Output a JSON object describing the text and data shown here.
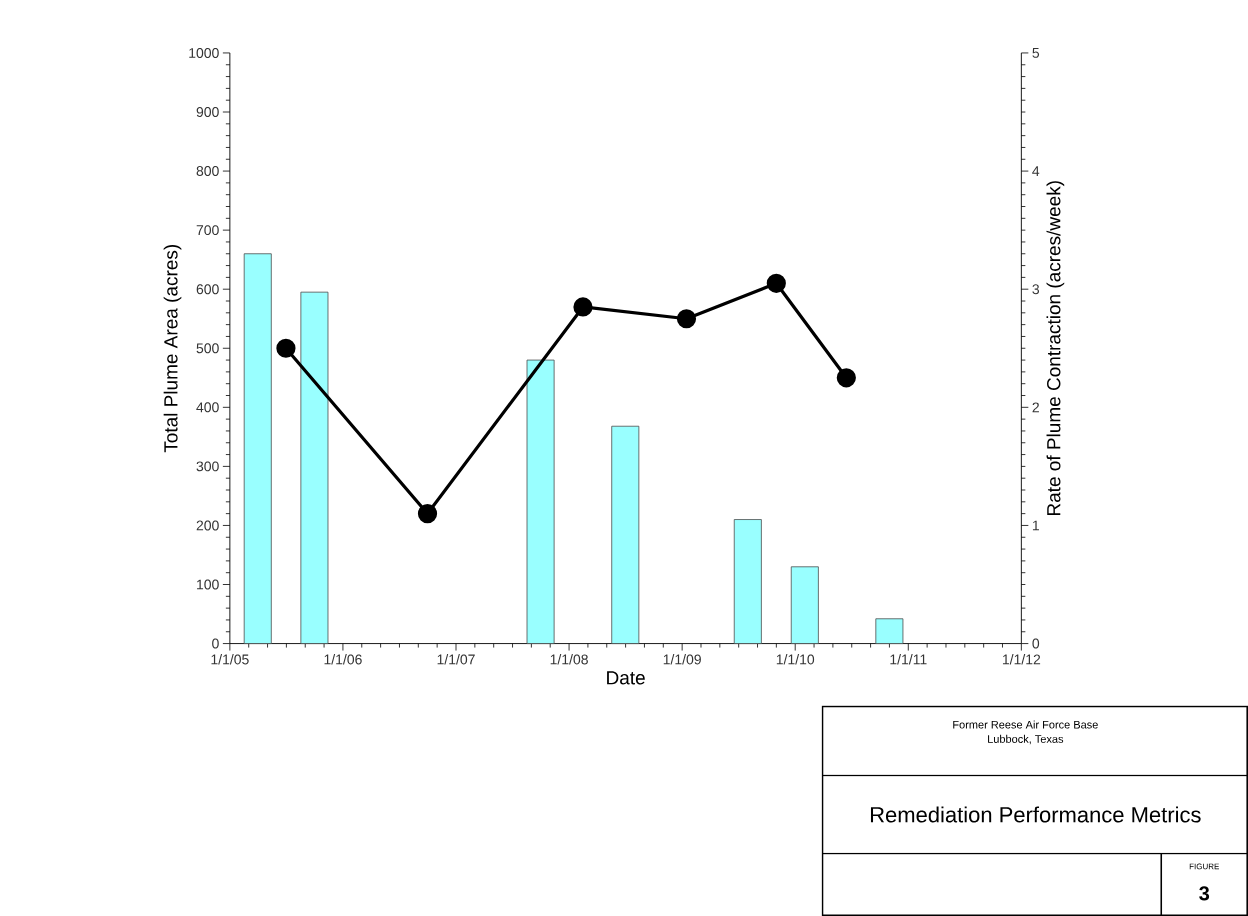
{
  "chart_data": {
    "type": "bar",
    "title": "Remediation Performance Metrics",
    "xlabel": "Date",
    "ylabel": "Total Plume Area (acres)",
    "y2label": "Rate of Plume Contraction (acres/week)",
    "annotations": [
      "Former Reese Air Force Base",
      "Lubbock, Texas",
      "FIGURE",
      "3"
    ],
    "series": [
      {
        "color": "#99ffff",
        "x": [
          "2005-04-01",
          "2005-10-01",
          "2007-10-01",
          "2008-07-01",
          "2009-08-01",
          "2010-02-01",
          "2010-11-01"
        ],
        "values": [
          660,
          595,
          480,
          368,
          210,
          130,
          42
        ]
      },
      {
        "type": "line",
        "axis": "y2",
        "color": "#000000",
        "marker": "circle",
        "line_style": "solid",
        "x": [
          "2005-07-01",
          "2006-10-01",
          "2008-02-15",
          "2009-01-15",
          "2009-11-01",
          "2010-06-15"
        ],
        "values": [
          2.5,
          1.1,
          2.85,
          2.75,
          3.05,
          2.25
        ]
      }
    ],
    "xlim": [
      "2005-01-01",
      "2012-01-01"
    ],
    "xticks": [
      {
        "value": "2005-01-01",
        "label": "1/1/05"
      },
      {
        "value": "2006-01-01",
        "label": "1/1/06"
      },
      {
        "value": "2007-01-01",
        "label": "1/1/07"
      },
      {
        "value": "2008-01-01",
        "label": "1/1/08"
      },
      {
        "value": "2009-01-01",
        "label": "1/1/09"
      },
      {
        "value": "2010-01-01",
        "label": "1/1/10"
      },
      {
        "value": "2011-01-01",
        "label": "1/1/11"
      },
      {
        "value": "2012-01-01",
        "label": "1/1/12"
      }
    ],
    "ylim": [
      0,
      1000
    ],
    "yticks": [
      0,
      100,
      200,
      300,
      400,
      500,
      600,
      700,
      800,
      900,
      1000
    ],
    "y2lim": [
      0,
      5
    ],
    "y2ticks": [
      0,
      1,
      2,
      3,
      4,
      5
    ]
  }
}
